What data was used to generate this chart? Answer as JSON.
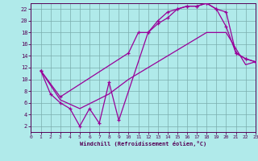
{
  "xlabel": "Windchill (Refroidissement éolien,°C)",
  "background_color": "#b0eaea",
  "grid_color": "#7aadad",
  "line_color": "#990099",
  "xlim": [
    0,
    23
  ],
  "ylim": [
    1,
    23
  ],
  "yticks": [
    2,
    4,
    6,
    8,
    10,
    12,
    14,
    16,
    18,
    20,
    22
  ],
  "xticks": [
    0,
    1,
    2,
    3,
    4,
    5,
    6,
    7,
    8,
    9,
    10,
    11,
    12,
    13,
    14,
    15,
    16,
    17,
    18,
    19,
    20,
    21,
    22,
    23
  ],
  "line_zigzag_x": [
    1,
    2,
    3,
    4,
    5,
    6,
    7,
    8,
    9,
    12,
    13,
    14,
    15,
    16,
    17,
    18,
    19,
    20,
    21,
    22,
    23
  ],
  "line_zigzag_y": [
    11.5,
    7.5,
    6.0,
    5.0,
    2.0,
    5.0,
    2.5,
    9.5,
    3.0,
    18.0,
    19.5,
    20.5,
    22.0,
    22.5,
    22.5,
    23.0,
    22.0,
    19.0,
    14.5,
    13.5,
    13.0
  ],
  "line_upper_x": [
    1,
    3,
    10,
    11,
    12,
    13,
    14,
    15,
    16,
    17,
    18,
    19,
    20,
    21,
    22,
    23
  ],
  "line_upper_y": [
    11.5,
    7.0,
    14.5,
    18.0,
    18.0,
    20.0,
    21.5,
    22.0,
    22.5,
    22.5,
    23.0,
    22.0,
    21.5,
    14.5,
    13.5,
    13.0
  ],
  "line_lower_x": [
    1,
    3,
    5,
    8,
    10,
    12,
    14,
    16,
    18,
    20,
    22,
    23
  ],
  "line_lower_y": [
    11.5,
    6.5,
    5.0,
    7.5,
    10.0,
    12.0,
    14.0,
    16.0,
    18.0,
    18.0,
    12.5,
    13.0
  ]
}
